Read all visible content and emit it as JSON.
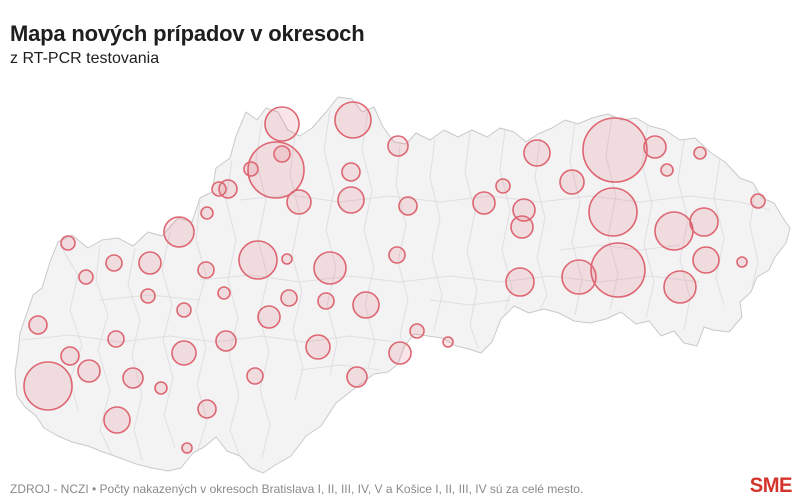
{
  "header": {
    "title": "Mapa nových prípadov v okresoch",
    "subtitle": "z RT-PCR testovania"
  },
  "footer": {
    "source": "ZDROJ - NCZI • Počty nakazených v okresoch Bratislava I, II, III, IV, V a Košice I, II, III, IV sú za celé mesto.",
    "logo": "SME"
  },
  "colors": {
    "title_ink": "#1e1e1e",
    "footer_gray": "#8a8a8a",
    "logo_red": "#d5342b",
    "land_fill": "#f3f3f4",
    "country_border": "#c9c9c9",
    "district_border": "#dddde0",
    "bubble_stroke": "#dd6672",
    "bubble_fill": "rgba(221,102,114,0.16)"
  },
  "chart_data": {
    "type": "bubble-map",
    "title": "Mapa nových prípadov v okresoch",
    "subtitle": "z RT-PCR testovania",
    "points_format": [
      "x_px",
      "y_px",
      "radius_px"
    ],
    "points": [
      [
        68,
        243,
        7
      ],
      [
        86,
        277,
        7
      ],
      [
        114,
        263,
        8
      ],
      [
        150,
        263,
        11
      ],
      [
        148,
        296,
        7
      ],
      [
        38,
        325,
        9
      ],
      [
        70,
        356,
        9
      ],
      [
        89,
        371,
        11
      ],
      [
        48,
        386,
        24
      ],
      [
        116,
        339,
        8
      ],
      [
        133,
        378,
        10
      ],
      [
        117,
        420,
        13
      ],
      [
        161,
        388,
        6
      ],
      [
        184,
        353,
        12
      ],
      [
        184,
        310,
        7
      ],
      [
        207,
        409,
        9
      ],
      [
        187,
        448,
        5
      ],
      [
        179,
        232,
        15
      ],
      [
        207,
        213,
        6
      ],
      [
        206,
        270,
        8
      ],
      [
        224,
        293,
        6
      ],
      [
        226,
        341,
        10
      ],
      [
        255,
        376,
        8
      ],
      [
        251,
        169,
        7
      ],
      [
        219,
        189,
        7
      ],
      [
        228,
        189,
        9
      ],
      [
        282,
        124,
        17
      ],
      [
        276,
        170,
        28
      ],
      [
        282,
        154,
        8
      ],
      [
        299,
        202,
        12
      ],
      [
        353,
        120,
        18
      ],
      [
        351,
        172,
        9
      ],
      [
        351,
        200,
        13
      ],
      [
        398,
        146,
        10
      ],
      [
        408,
        206,
        9
      ],
      [
        397,
        255,
        8
      ],
      [
        258,
        260,
        19
      ],
      [
        287,
        259,
        5
      ],
      [
        269,
        317,
        11
      ],
      [
        289,
        298,
        8
      ],
      [
        330,
        268,
        16
      ],
      [
        326,
        301,
        8
      ],
      [
        318,
        347,
        12
      ],
      [
        366,
        305,
        13
      ],
      [
        357,
        377,
        10
      ],
      [
        400,
        353,
        11
      ],
      [
        417,
        331,
        7
      ],
      [
        448,
        342,
        5
      ],
      [
        484,
        203,
        11
      ],
      [
        503,
        186,
        7
      ],
      [
        524,
        210,
        11
      ],
      [
        522,
        227,
        11
      ],
      [
        537,
        153,
        13
      ],
      [
        572,
        182,
        12
      ],
      [
        615,
        150,
        32
      ],
      [
        655,
        147,
        11
      ],
      [
        700,
        153,
        6
      ],
      [
        667,
        170,
        6
      ],
      [
        613,
        212,
        24
      ],
      [
        674,
        231,
        19
      ],
      [
        704,
        222,
        14
      ],
      [
        758,
        201,
        7
      ],
      [
        618,
        270,
        27
      ],
      [
        579,
        277,
        17
      ],
      [
        520,
        282,
        14
      ],
      [
        680,
        287,
        16
      ],
      [
        706,
        260,
        13
      ],
      [
        742,
        262,
        5
      ]
    ]
  }
}
